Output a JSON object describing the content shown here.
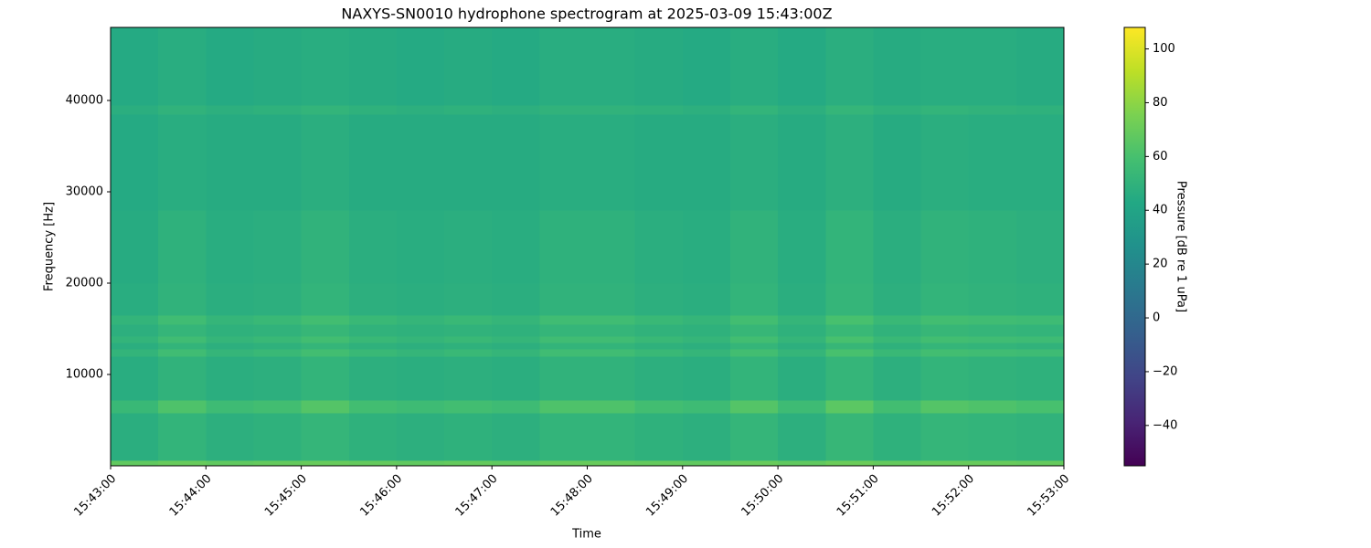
{
  "chart_data": {
    "type": "spectrogram",
    "title": "NAXYS-SN0010 hydrophone spectrogram at 2025-03-09 15:43:00Z",
    "xlabel": "Time",
    "ylabel": "Frequency [Hz]",
    "x": [
      "15:43:00",
      "15:43:30",
      "15:44:00",
      "15:44:30",
      "15:45:00",
      "15:45:30",
      "15:46:00",
      "15:46:30",
      "15:47:00",
      "15:47:30",
      "15:48:00",
      "15:48:30",
      "15:49:00",
      "15:49:30",
      "15:50:00",
      "15:50:30",
      "15:51:00",
      "15:51:30",
      "15:52:00",
      "15:52:30"
    ],
    "xlim": [
      "15:43:00",
      "15:53:00"
    ],
    "xticks": [
      "15:43:00",
      "15:44:00",
      "15:45:00",
      "15:46:00",
      "15:47:00",
      "15:48:00",
      "15:49:00",
      "15:50:00",
      "15:51:00",
      "15:52:00",
      "15:53:00"
    ],
    "y_edges": [
      0,
      600,
      5800,
      7200,
      12000,
      12800,
      13500,
      14200,
      15500,
      16500,
      20000,
      28000,
      38500,
      39500,
      48000
    ],
    "ylim": [
      0,
      48000
    ],
    "yticks": [
      10000,
      20000,
      30000,
      40000
    ],
    "colormap": "viridis",
    "values": [
      [
        68,
        70,
        68,
        69,
        70,
        69,
        68,
        69,
        68,
        70,
        70,
        69,
        68,
        70,
        68,
        71,
        69,
        70,
        70,
        69
      ],
      [
        47,
        51,
        48,
        49,
        52,
        49,
        48,
        49,
        48,
        51,
        51,
        49,
        48,
        52,
        48,
        53,
        49,
        52,
        51,
        50
      ],
      [
        54,
        62,
        56,
        58,
        64,
        58,
        56,
        58,
        56,
        62,
        62,
        58,
        56,
        64,
        56,
        66,
        58,
        64,
        62,
        60
      ],
      [
        46,
        50,
        47,
        48,
        51,
        48,
        47,
        48,
        47,
        50,
        50,
        48,
        47,
        51,
        47,
        52,
        48,
        51,
        50,
        49
      ],
      [
        51,
        57,
        52,
        54,
        58,
        54,
        52,
        54,
        52,
        57,
        57,
        54,
        52,
        58,
        52,
        60,
        54,
        58,
        57,
        56
      ],
      [
        47,
        51,
        48,
        49,
        52,
        49,
        48,
        49,
        48,
        51,
        51,
        49,
        48,
        52,
        48,
        53,
        49,
        52,
        51,
        50
      ],
      [
        51,
        57,
        52,
        54,
        58,
        54,
        52,
        54,
        52,
        57,
        57,
        54,
        52,
        58,
        52,
        60,
        54,
        58,
        57,
        56
      ],
      [
        48,
        52,
        49,
        50,
        53,
        50,
        49,
        50,
        49,
        52,
        52,
        50,
        49,
        53,
        49,
        54,
        50,
        53,
        52,
        51
      ],
      [
        51,
        57,
        52,
        54,
        58,
        54,
        52,
        54,
        52,
        57,
        57,
        54,
        52,
        58,
        52,
        60,
        54,
        58,
        57,
        56
      ],
      [
        46,
        50,
        47,
        48,
        51,
        48,
        47,
        48,
        47,
        50,
        50,
        48,
        47,
        51,
        47,
        52,
        48,
        51,
        50,
        49
      ],
      [
        45,
        49,
        46,
        47,
        50,
        47,
        46,
        47,
        46,
        49,
        49,
        47,
        46,
        50,
        46,
        51,
        47,
        50,
        49,
        48
      ],
      [
        44,
        46,
        45,
        45,
        47,
        45,
        45,
        45,
        45,
        46,
        46,
        45,
        45,
        47,
        45,
        48,
        45,
        47,
        46,
        46
      ],
      [
        47,
        50,
        48,
        49,
        51,
        49,
        48,
        49,
        48,
        50,
        50,
        49,
        48,
        51,
        48,
        52,
        49,
        51,
        50,
        49
      ],
      [
        44,
        46,
        44,
        45,
        46,
        45,
        44,
        45,
        44,
        46,
        46,
        45,
        44,
        46,
        44,
        47,
        45,
        46,
        46,
        45
      ]
    ],
    "colorbar": {
      "label": "Pressure [dB re 1 uPa]",
      "lim": [
        -55,
        108
      ],
      "ticks": [
        {
          "value": -40,
          "label": "−40"
        },
        {
          "value": -20,
          "label": "−20"
        },
        0,
        20,
        40,
        60,
        80,
        100
      ]
    }
  }
}
